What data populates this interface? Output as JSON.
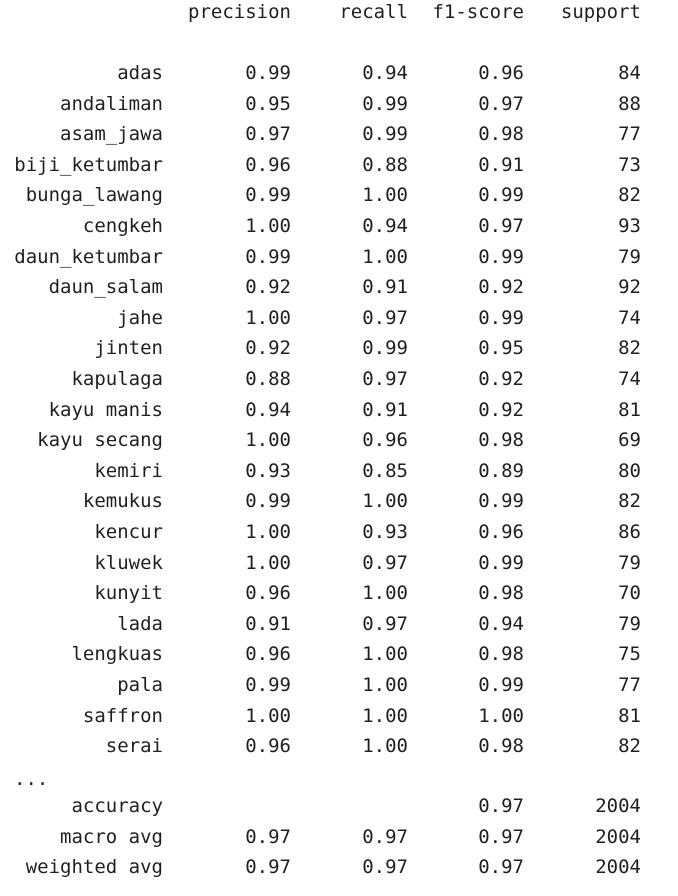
{
  "header": {
    "precision": "precision",
    "recall": "recall",
    "f1": "f1-score",
    "support": "support"
  },
  "rows": [
    {
      "label": "adas",
      "precision": "0.99",
      "recall": "0.94",
      "f1": "0.96",
      "support": "84"
    },
    {
      "label": "andaliman",
      "precision": "0.95",
      "recall": "0.99",
      "f1": "0.97",
      "support": "88"
    },
    {
      "label": "asam_jawa",
      "precision": "0.97",
      "recall": "0.99",
      "f1": "0.98",
      "support": "77"
    },
    {
      "label": "biji_ketumbar",
      "precision": "0.96",
      "recall": "0.88",
      "f1": "0.91",
      "support": "73"
    },
    {
      "label": "bunga_lawang",
      "precision": "0.99",
      "recall": "1.00",
      "f1": "0.99",
      "support": "82"
    },
    {
      "label": "cengkeh",
      "precision": "1.00",
      "recall": "0.94",
      "f1": "0.97",
      "support": "93"
    },
    {
      "label": "daun_ketumbar",
      "precision": "0.99",
      "recall": "1.00",
      "f1": "0.99",
      "support": "79"
    },
    {
      "label": "daun_salam",
      "precision": "0.92",
      "recall": "0.91",
      "f1": "0.92",
      "support": "92"
    },
    {
      "label": "jahe",
      "precision": "1.00",
      "recall": "0.97",
      "f1": "0.99",
      "support": "74"
    },
    {
      "label": "jinten",
      "precision": "0.92",
      "recall": "0.99",
      "f1": "0.95",
      "support": "82"
    },
    {
      "label": "kapulaga",
      "precision": "0.88",
      "recall": "0.97",
      "f1": "0.92",
      "support": "74"
    },
    {
      "label": "kayu manis",
      "precision": "0.94",
      "recall": "0.91",
      "f1": "0.92",
      "support": "81"
    },
    {
      "label": "kayu secang",
      "precision": "1.00",
      "recall": "0.96",
      "f1": "0.98",
      "support": "69"
    },
    {
      "label": "kemiri",
      "precision": "0.93",
      "recall": "0.85",
      "f1": "0.89",
      "support": "80"
    },
    {
      "label": "kemukus",
      "precision": "0.99",
      "recall": "1.00",
      "f1": "0.99",
      "support": "82"
    },
    {
      "label": "kencur",
      "precision": "1.00",
      "recall": "0.93",
      "f1": "0.96",
      "support": "86"
    },
    {
      "label": "kluwek",
      "precision": "1.00",
      "recall": "0.97",
      "f1": "0.99",
      "support": "79"
    },
    {
      "label": "kunyit",
      "precision": "0.96",
      "recall": "1.00",
      "f1": "0.98",
      "support": "70"
    },
    {
      "label": "lada",
      "precision": "0.91",
      "recall": "0.97",
      "f1": "0.94",
      "support": "79"
    },
    {
      "label": "lengkuas",
      "precision": "0.96",
      "recall": "1.00",
      "f1": "0.98",
      "support": "75"
    },
    {
      "label": "pala",
      "precision": "0.99",
      "recall": "1.00",
      "f1": "0.99",
      "support": "77"
    },
    {
      "label": "saffron",
      "precision": "1.00",
      "recall": "1.00",
      "f1": "1.00",
      "support": "81"
    },
    {
      "label": "serai",
      "precision": "0.96",
      "recall": "1.00",
      "f1": "0.98",
      "support": "82"
    }
  ],
  "ellipsis": "...",
  "summary": [
    {
      "label": "accuracy",
      "precision": "",
      "recall": "",
      "f1": "0.97",
      "support": "2004"
    },
    {
      "label": "macro avg",
      "precision": "0.97",
      "recall": "0.97",
      "f1": "0.97",
      "support": "2004"
    },
    {
      "label": "weighted avg",
      "precision": "0.97",
      "recall": "0.97",
      "f1": "0.97",
      "support": "2004"
    }
  ]
}
